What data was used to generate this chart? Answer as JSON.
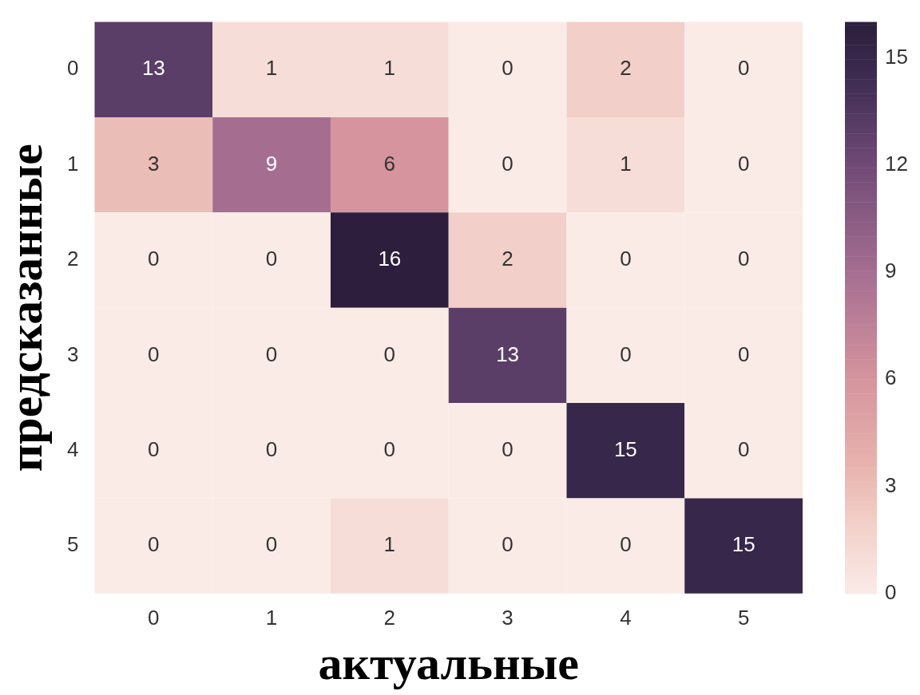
{
  "chart_data": {
    "type": "heatmap",
    "xlabel": "актуальные",
    "ylabel": "предсказанные",
    "categories": [
      "0",
      "1",
      "2",
      "3",
      "4",
      "5"
    ],
    "y_categories": [
      "0",
      "1",
      "2",
      "3",
      "4",
      "5"
    ],
    "cells": [
      [
        13,
        1,
        1,
        0,
        2,
        0
      ],
      [
        3,
        9,
        6,
        0,
        1,
        0
      ],
      [
        0,
        0,
        16,
        2,
        0,
        0
      ],
      [
        0,
        0,
        0,
        13,
        0,
        0
      ],
      [
        0,
        0,
        0,
        0,
        15,
        0
      ],
      [
        0,
        0,
        1,
        0,
        0,
        15
      ]
    ],
    "data_labels": true,
    "clim": [
      0,
      16
    ],
    "cticks": [
      0,
      3,
      6,
      9,
      12,
      15
    ]
  }
}
